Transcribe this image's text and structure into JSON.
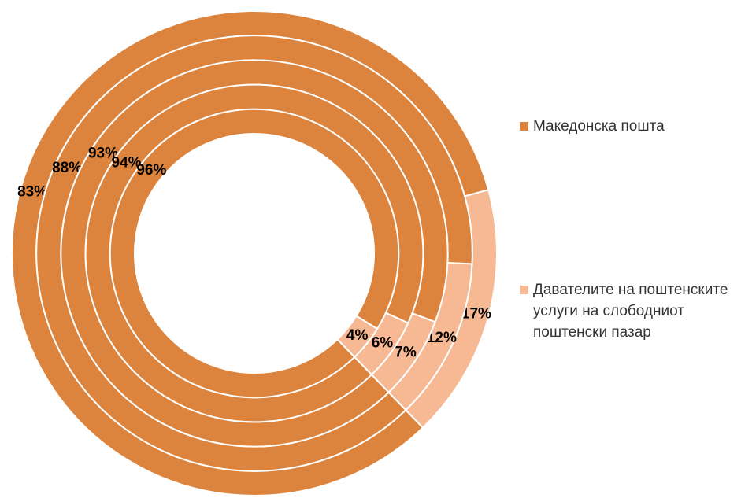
{
  "chart_data": {
    "type": "doughnut",
    "categories": [
      "Македонска пошта",
      "Давателите на поштенските услуги на слободниот поштенски пазар"
    ],
    "colors": [
      "#dc843d",
      "#f7b994"
    ],
    "rings": [
      {
        "values": [
          83,
          17
        ]
      },
      {
        "values": [
          88,
          12
        ]
      },
      {
        "values": [
          93,
          7
        ]
      },
      {
        "values": [
          94,
          6
        ]
      },
      {
        "values": [
          96,
          4
        ]
      }
    ]
  }
}
